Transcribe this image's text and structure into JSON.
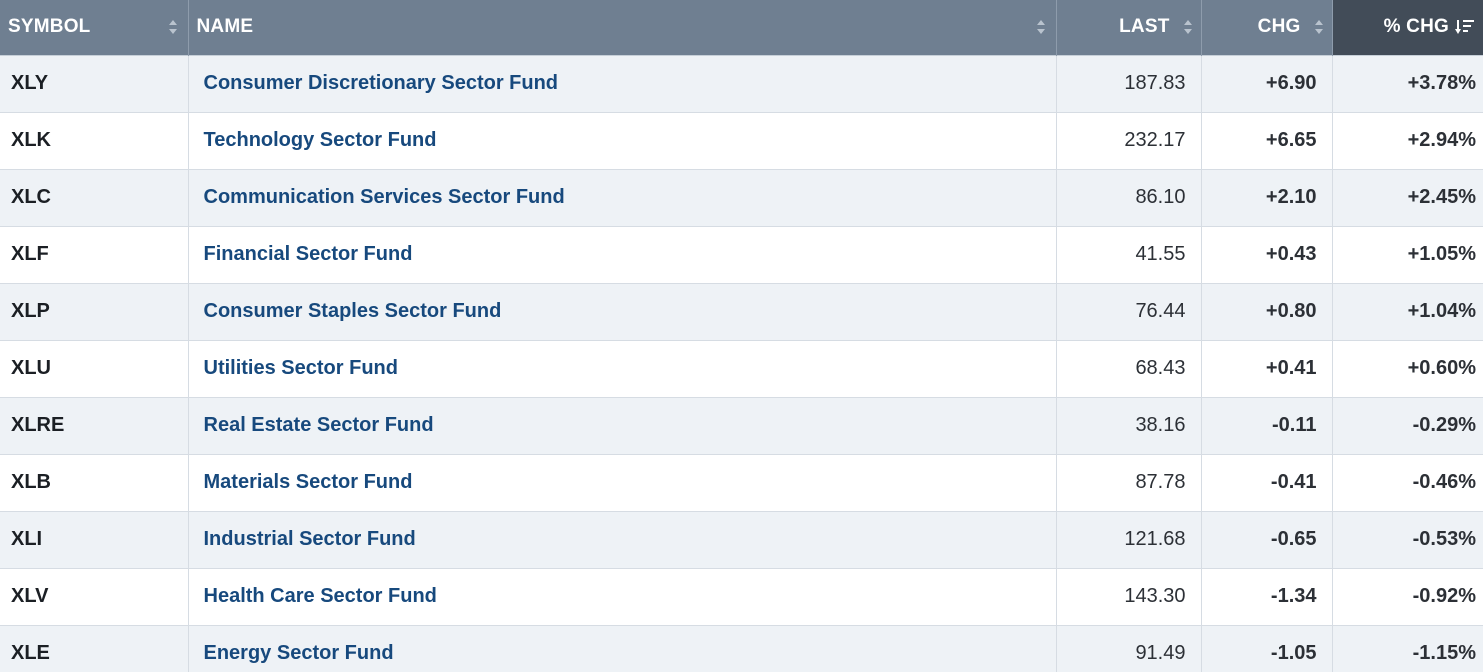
{
  "columns": {
    "symbol": "SYMBOL",
    "name": "NAME",
    "last": "LAST",
    "chg": "CHG",
    "pct_chg": "% CHG"
  },
  "sort": {
    "column": "pct_chg",
    "direction": "descending"
  },
  "colors": {
    "header_bg": "#6f7f91",
    "active_header_bg": "#424c58",
    "positive": "#1f8a3b",
    "negative": "#cc0000",
    "link": "#17497d"
  },
  "rows": [
    {
      "symbol": "XLY",
      "name": "Consumer Discretionary Sector Fund",
      "last": "187.83",
      "chg": "+6.90",
      "pct_chg": "+3.78%",
      "direction": "up"
    },
    {
      "symbol": "XLK",
      "name": "Technology Sector Fund",
      "last": "232.17",
      "chg": "+6.65",
      "pct_chg": "+2.94%",
      "direction": "up"
    },
    {
      "symbol": "XLC",
      "name": "Communication Services Sector Fund",
      "last": "86.10",
      "chg": "+2.10",
      "pct_chg": "+2.45%",
      "direction": "up"
    },
    {
      "symbol": "XLF",
      "name": "Financial Sector Fund",
      "last": "41.55",
      "chg": "+0.43",
      "pct_chg": "+1.05%",
      "direction": "up"
    },
    {
      "symbol": "XLP",
      "name": "Consumer Staples Sector Fund",
      "last": "76.44",
      "chg": "+0.80",
      "pct_chg": "+1.04%",
      "direction": "up"
    },
    {
      "symbol": "XLU",
      "name": "Utilities Sector Fund",
      "last": "68.43",
      "chg": "+0.41",
      "pct_chg": "+0.60%",
      "direction": "up"
    },
    {
      "symbol": "XLRE",
      "name": "Real Estate Sector Fund",
      "last": "38.16",
      "chg": "-0.11",
      "pct_chg": "-0.29%",
      "direction": "down"
    },
    {
      "symbol": "XLB",
      "name": "Materials Sector Fund",
      "last": "87.78",
      "chg": "-0.41",
      "pct_chg": "-0.46%",
      "direction": "down"
    },
    {
      "symbol": "XLI",
      "name": "Industrial Sector Fund",
      "last": "121.68",
      "chg": "-0.65",
      "pct_chg": "-0.53%",
      "direction": "down"
    },
    {
      "symbol": "XLV",
      "name": "Health Care Sector Fund",
      "last": "143.30",
      "chg": "-1.34",
      "pct_chg": "-0.92%",
      "direction": "down"
    },
    {
      "symbol": "XLE",
      "name": "Energy Sector Fund",
      "last": "91.49",
      "chg": "-1.05",
      "pct_chg": "-1.15%",
      "direction": "down"
    }
  ]
}
